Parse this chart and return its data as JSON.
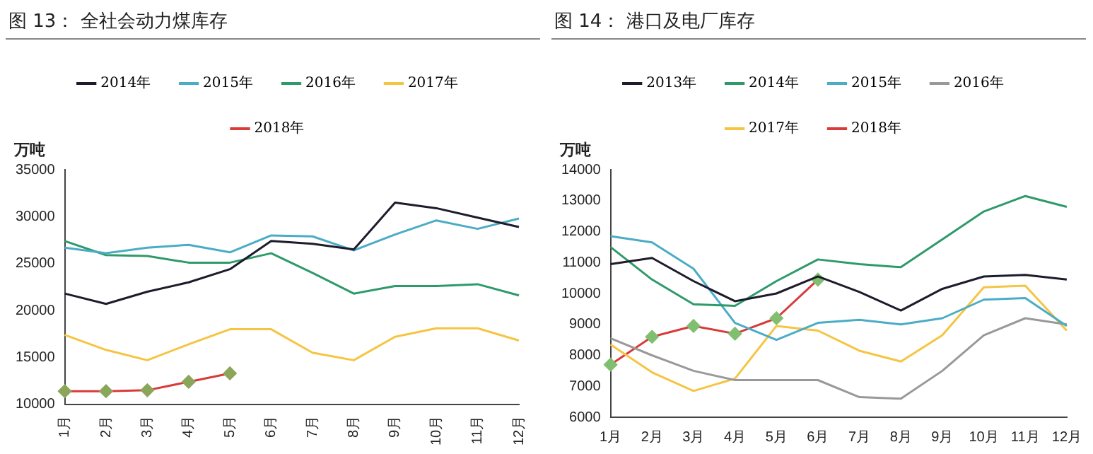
{
  "chart_data": [
    {
      "type": "line",
      "title": "图 13：  全社会动力煤库存",
      "ylabel": "万吨",
      "categories": [
        "1月",
        "2月",
        "3月",
        "4月",
        "5月",
        "6月",
        "7月",
        "8月",
        "9月",
        "10月",
        "11月",
        "12月"
      ],
      "ylim": [
        10000,
        35000
      ],
      "yticks": [
        10000,
        15000,
        20000,
        25000,
        30000,
        35000
      ],
      "grid": false,
      "legend": "top",
      "series": [
        {
          "name": "2014年",
          "color": "#1c1c2c",
          "values": [
            21800,
            20700,
            22000,
            23000,
            24400,
            27400,
            27100,
            26500,
            31500,
            30900,
            29900,
            28900
          ]
        },
        {
          "name": "2015年",
          "color": "#4bacc6",
          "values": [
            26700,
            26100,
            26700,
            27000,
            26200,
            28000,
            27900,
            26400,
            28100,
            29600,
            28700,
            29800
          ]
        },
        {
          "name": "2016年",
          "color": "#2e9a6a",
          "values": [
            27400,
            25900,
            25800,
            25100,
            25100,
            26100,
            24000,
            21800,
            22600,
            22600,
            22800,
            21600
          ]
        },
        {
          "name": "2017年",
          "color": "#f5c542",
          "values": [
            17400,
            15800,
            14700,
            16400,
            18000,
            18000,
            15500,
            14700,
            17200,
            18100,
            18100,
            16800
          ]
        },
        {
          "name": "2018年",
          "color": "#d93a3a",
          "marker": "diamond",
          "colors": [
            "#8ba55a",
            "#8ba55a",
            "#8ba55a",
            "#8ba55a",
            "#8ba55a",
            null,
            null,
            null,
            null,
            null,
            null,
            null
          ],
          "values": [
            11400,
            11400,
            11500,
            12400,
            13300,
            null,
            null,
            null,
            null,
            null,
            null,
            null
          ]
        }
      ]
    },
    {
      "type": "line",
      "title": "图 14：  港口及电厂库存",
      "ylabel": "万吨",
      "categories": [
        "1月",
        "2月",
        "3月",
        "4月",
        "5月",
        "6月",
        "7月",
        "8月",
        "9月",
        "10月",
        "11月",
        "12月"
      ],
      "ylim": [
        6000,
        14000
      ],
      "yticks": [
        6000,
        7000,
        8000,
        9000,
        10000,
        11000,
        12000,
        13000,
        14000
      ],
      "grid": false,
      "legend": "top",
      "series": [
        {
          "name": "2013年",
          "color": "#1c1c2c",
          "values": [
            10950,
            11150,
            10400,
            9750,
            10000,
            10550,
            10050,
            9450,
            10150,
            10550,
            10600,
            10450
          ]
        },
        {
          "name": "2014年",
          "color": "#2e9a6a",
          "values": [
            11500,
            10450,
            9650,
            9600,
            10400,
            11100,
            10950,
            10850,
            11750,
            12650,
            13150,
            12800
          ]
        },
        {
          "name": "2015年",
          "color": "#4bacc6",
          "values": [
            11850,
            11650,
            10800,
            9050,
            8500,
            9050,
            9150,
            9000,
            9200,
            9800,
            9850,
            8950
          ]
        },
        {
          "name": "2016年",
          "color": "#999999",
          "values": [
            8550,
            8000,
            7500,
            7200,
            7200,
            7200,
            6650,
            6600,
            7500,
            8650,
            9200,
            9000
          ]
        },
        {
          "name": "2017年",
          "color": "#f5c542",
          "values": [
            8350,
            7450,
            6850,
            7250,
            8950,
            8800,
            8150,
            7800,
            8650,
            10200,
            10250,
            8800
          ]
        },
        {
          "name": "2018年",
          "color": "#d93a3a",
          "marker": "diamond",
          "colors": [
            "#7fbf6f",
            "#7fbf6f",
            "#7fbf6f",
            "#7fbf6f",
            "#7fbf6f",
            "#7fbf6f",
            null,
            null,
            null,
            null,
            null,
            null
          ],
          "values": [
            7700,
            8600,
            8950,
            8700,
            9200,
            10450,
            null,
            null,
            null,
            null,
            null,
            null
          ]
        }
      ]
    }
  ]
}
